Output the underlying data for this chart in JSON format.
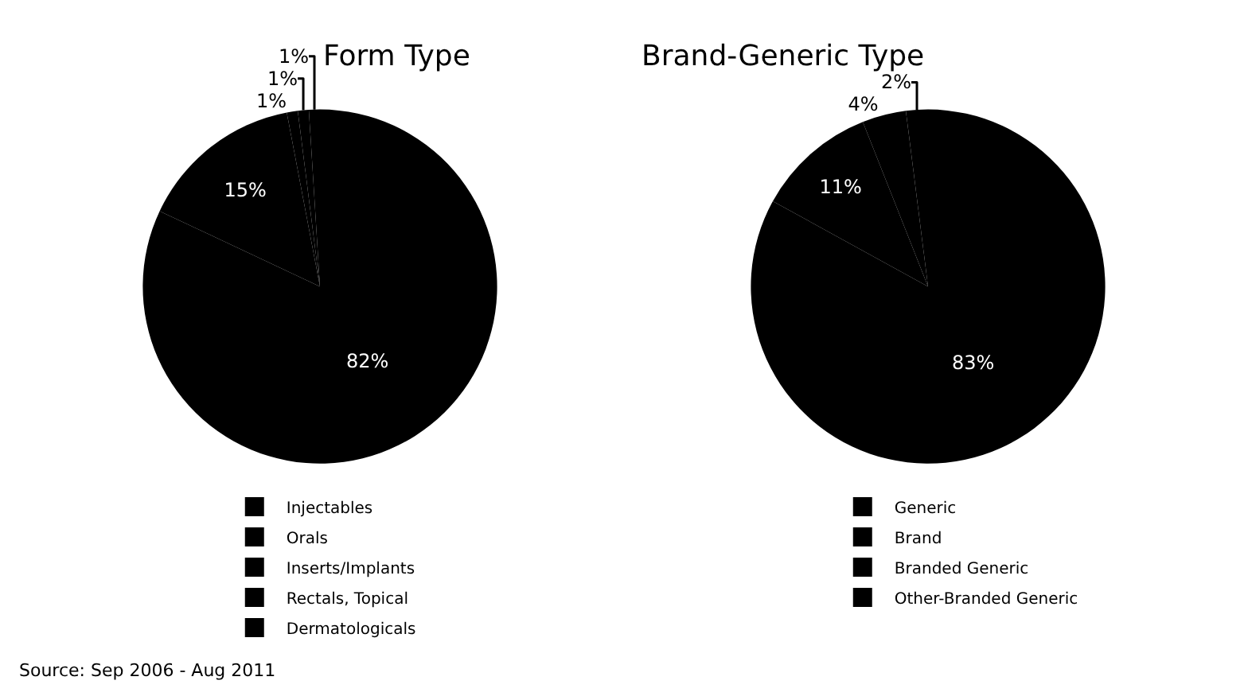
{
  "chart_data": [
    {
      "type": "pie",
      "title": "Form Type",
      "categories": [
        "Injectables",
        "Orals",
        "Inserts/Implants",
        "Rectals, Topical",
        "Dermatologicals"
      ],
      "values": [
        82,
        15,
        1,
        1,
        1
      ],
      "value_labels": [
        "82%",
        "15%",
        "1%",
        "1%",
        "1%"
      ],
      "colors": [
        "#000000",
        "#000000",
        "#000000",
        "#000000",
        "#000000"
      ],
      "legend": "bottom",
      "annotations": [
        "Source: Sep 2006 - Aug 2011"
      ]
    },
    {
      "type": "pie",
      "title": "Brand-Generic Type",
      "categories": [
        "Generic",
        "Brand",
        "Branded Generic",
        "Other-Branded Generic"
      ],
      "values": [
        83,
        11,
        4,
        2
      ],
      "value_labels": [
        "83%",
        "11%",
        "4%",
        "2%"
      ],
      "colors": [
        "#000000",
        "#000000",
        "#000000",
        "#000000"
      ],
      "legend": "bottom"
    }
  ]
}
